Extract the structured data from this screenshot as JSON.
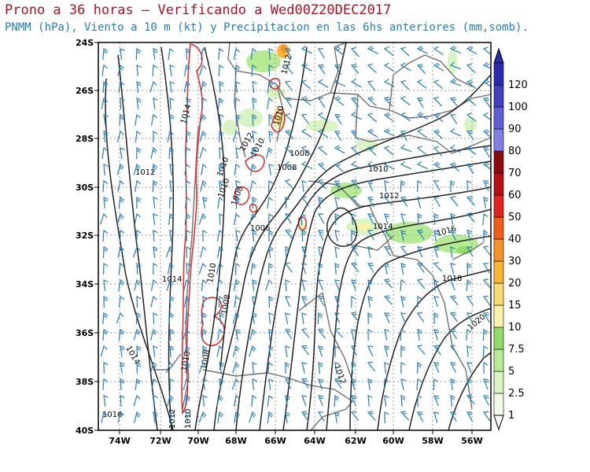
{
  "header": {
    "title": "Prono a 36 horas – Verificando a Wed00Z20DEC2017",
    "subtitle": "PNMM (hPa), Viento a 10 m (kt) y Precipitacion en las 6hs anteriores (mm,somb)."
  },
  "axes": {
    "lat_labels": [
      "24S",
      "26S",
      "28S",
      "30S",
      "32S",
      "34S",
      "36S",
      "38S",
      "40S"
    ],
    "lon_labels": [
      "74W",
      "72W",
      "70W",
      "68W",
      "66W",
      "64W",
      "62W",
      "60W",
      "58W",
      "56W"
    ]
  },
  "colorbar": {
    "labels": [
      "1",
      "2.5",
      "5",
      "7.5",
      "10",
      "15",
      "20",
      "30",
      "40",
      "50",
      "60",
      "70",
      "80",
      "90",
      "100",
      "120"
    ],
    "colors": [
      "#f2fbe8",
      "#d8f4c2",
      "#b6eb94",
      "#8fdc6a",
      "#fbf2a8",
      "#f8dc70",
      "#f7b733",
      "#f79228",
      "#f25c1a",
      "#e0241c",
      "#b70f13",
      "#8d0a0c",
      "#7f7fe6",
      "#5f5fd6",
      "#4040c0",
      "#2a2ab0"
    ],
    "arrow_top": "#2a2ab0",
    "arrow_bottom": "#ffffff"
  },
  "isobar_labels": [
    "1012",
    "1014",
    "1012",
    "1014",
    "1010",
    "1008",
    "1010",
    "1012",
    "1010",
    "1008",
    "1006",
    "1010",
    "1008",
    "1010",
    "1008",
    "1008",
    "1010",
    "1012",
    "1014",
    "1016",
    "1018",
    "1020",
    "1012",
    "1014",
    "1016",
    "1012",
    "1010",
    "1010"
  ],
  "colors": {
    "title": "#b01020",
    "subtitle": "#1f7fb8",
    "wind_barbs": "#1f7fb8",
    "topography": "#e03030",
    "coastline": "#707070",
    "isobars": "#202020",
    "grid": "#999999"
  }
}
